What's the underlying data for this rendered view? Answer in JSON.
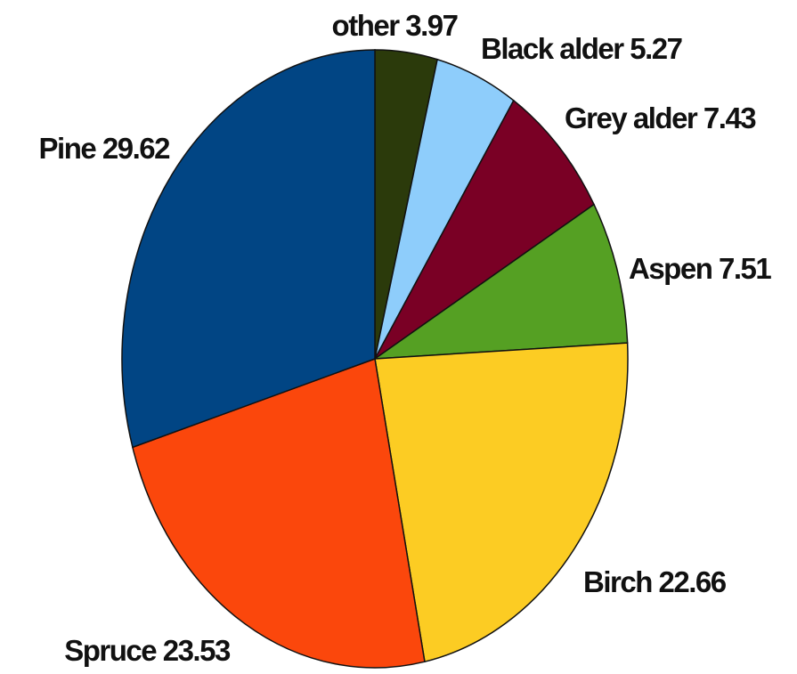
{
  "chart_data": {
    "type": "pie",
    "title": "",
    "start_angle_deg": 0,
    "direction": "clockwise",
    "slices": [
      {
        "label": "other",
        "value": 3.97,
        "text": "other 3.97",
        "color": "#2b3a0b",
        "label_anchor": "middle"
      },
      {
        "label": "Black alder",
        "value": 5.27,
        "text": "Black alder 5.27",
        "color": "#8ecdfb",
        "label_anchor": "start"
      },
      {
        "label": "Grey alder",
        "value": 7.43,
        "text": "Grey alder 7.43",
        "color": "#7a0025",
        "label_anchor": "start"
      },
      {
        "label": "Aspen",
        "value": 7.51,
        "text": "Aspen 7.51",
        "color": "#55a023",
        "label_anchor": "start"
      },
      {
        "label": "Birch",
        "value": 22.66,
        "text": "Birch 22.66",
        "color": "#fccc23",
        "label_anchor": "start"
      },
      {
        "label": "Spruce",
        "value": 23.53,
        "text": "Spruce 23.53",
        "color": "#fb470c",
        "label_anchor": "middle"
      },
      {
        "label": "Pine",
        "value": 29.62,
        "text": "Pine 29.62",
        "color": "#014584",
        "label_anchor": "end"
      }
    ]
  }
}
